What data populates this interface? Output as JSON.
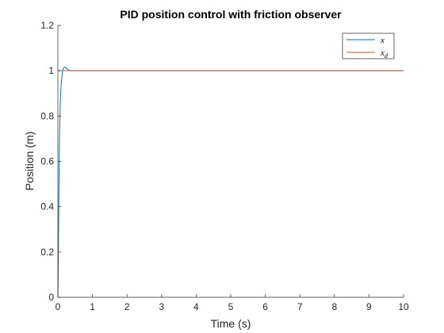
{
  "chart_data": {
    "type": "line",
    "title": "PID position control with friction observer",
    "xlabel": "Time (s)",
    "ylabel": "Position (m)",
    "xlim": [
      0,
      10
    ],
    "ylim": [
      0,
      1.2
    ],
    "xticks": [
      0,
      1,
      2,
      3,
      4,
      5,
      6,
      7,
      8,
      9,
      10
    ],
    "xtick_labels": [
      "0",
      "1",
      "2",
      "3",
      "4",
      "5",
      "6",
      "7",
      "8",
      "9",
      "10"
    ],
    "yticks": [
      0,
      0.2,
      0.4,
      0.6,
      0.8,
      1,
      1.2
    ],
    "ytick_labels": [
      "0",
      "0.2",
      "0.4",
      "0.6",
      "0.8",
      "1",
      "1.2"
    ],
    "grid": false,
    "legend_position": "top-right",
    "series": [
      {
        "name": "x",
        "color": "#0072BD",
        "x": [
          0,
          0.01,
          0.02,
          0.03,
          0.04,
          0.05,
          0.06,
          0.07,
          0.08,
          0.1,
          0.12,
          0.14,
          0.16,
          0.18,
          0.2,
          0.22,
          0.25,
          0.28,
          0.31,
          0.35,
          0.4,
          0.5,
          0.6,
          10
        ],
        "y": [
          0,
          0.12,
          0.3,
          0.48,
          0.62,
          0.73,
          0.8,
          0.86,
          0.9,
          0.95,
          0.98,
          1.0,
          1.01,
          1.015,
          1.016,
          1.014,
          1.01,
          1.006,
          1.003,
          1.001,
          1.0,
          1.0,
          1.0,
          1.0
        ]
      },
      {
        "name": "x_d",
        "color": "#D95319",
        "x": [
          0,
          10
        ],
        "y": [
          1,
          1
        ]
      }
    ],
    "legend": [
      {
        "base": "x",
        "sub": ""
      },
      {
        "base": "x",
        "sub": "d"
      }
    ]
  }
}
